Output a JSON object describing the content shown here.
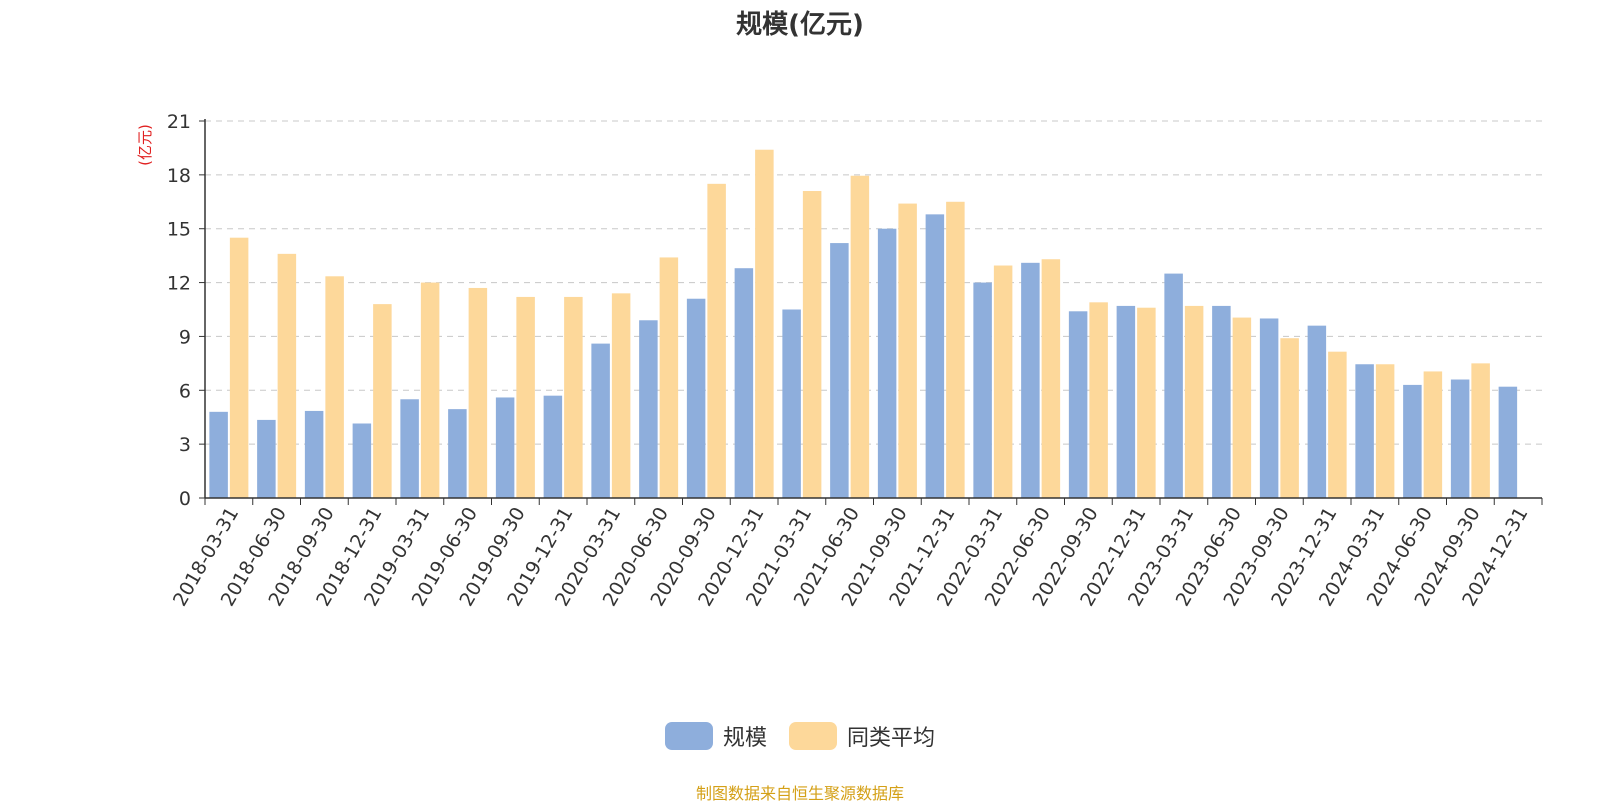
{
  "chart_data": {
    "type": "bar",
    "title": "规模(亿元)",
    "ylabel": "(亿元)",
    "xlabel": "",
    "ylim": [
      0,
      21
    ],
    "yticks": [
      0,
      3,
      6,
      9,
      12,
      15,
      18,
      21
    ],
    "grid": true,
    "legend_position": "bottom-center",
    "categories": [
      "2018-03-31",
      "2018-06-30",
      "2018-09-30",
      "2018-12-31",
      "2019-03-31",
      "2019-06-30",
      "2019-09-30",
      "2019-12-31",
      "2020-03-31",
      "2020-06-30",
      "2020-09-30",
      "2020-12-31",
      "2021-03-31",
      "2021-06-30",
      "2021-09-30",
      "2021-12-31",
      "2022-03-31",
      "2022-06-30",
      "2022-09-30",
      "2022-12-31",
      "2023-03-31",
      "2023-06-30",
      "2023-09-30",
      "2023-12-31",
      "2024-03-31",
      "2024-06-30",
      "2024-09-30",
      "2024-12-31"
    ],
    "series": [
      {
        "name": "规模",
        "color": "#8eaedc",
        "values": [
          4.8,
          4.35,
          4.85,
          4.15,
          5.5,
          4.95,
          5.6,
          5.7,
          8.6,
          9.9,
          11.1,
          12.8,
          10.5,
          14.2,
          15.0,
          15.8,
          12.0,
          13.1,
          10.4,
          10.7,
          12.5,
          10.7,
          10.0,
          9.6,
          7.45,
          6.3,
          6.6,
          6.2
        ]
      },
      {
        "name": "同类平均",
        "color": "#fdd89a",
        "values": [
          14.5,
          13.6,
          12.35,
          10.8,
          12.0,
          11.7,
          11.2,
          11.2,
          11.4,
          13.4,
          17.5,
          19.4,
          17.1,
          17.95,
          16.4,
          16.5,
          12.95,
          13.3,
          10.9,
          10.6,
          10.7,
          10.05,
          8.9,
          8.15,
          7.45,
          7.05,
          7.5,
          null
        ]
      }
    ]
  },
  "source_note": "制图数据来自恒生聚源数据库"
}
